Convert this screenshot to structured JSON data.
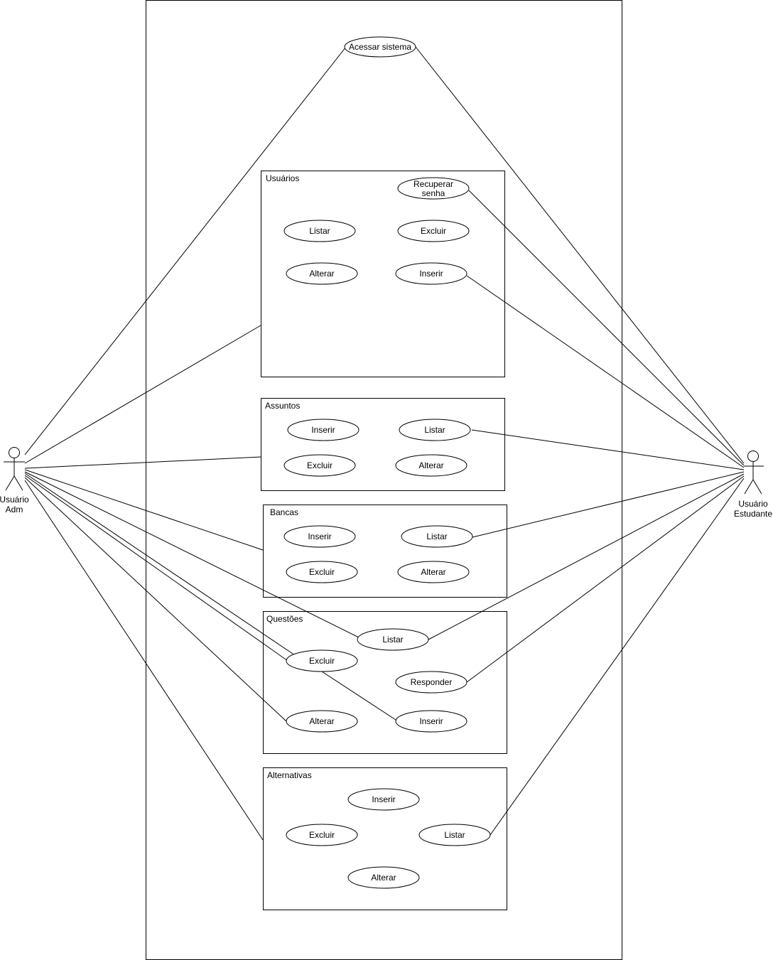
{
  "actors": {
    "admin": {
      "line1": "Usuário",
      "line2": "Adm"
    },
    "student": {
      "line1": "Usuário",
      "line2": "Estudante"
    }
  },
  "top_use_case": "Acessar sistema",
  "packages": {
    "usuarios": {
      "title": "Usuários",
      "recuperar_line1": "Recuperar",
      "recuperar_line2": "senha",
      "listar": "Listar",
      "excluir": "Excluir",
      "alterar": "Alterar",
      "inserir": "Inserir"
    },
    "assuntos": {
      "title": "Assuntos",
      "inserir": "Inserir",
      "listar": "Listar",
      "excluir": "Excluir",
      "alterar": "Alterar"
    },
    "bancas": {
      "title": "Bancas",
      "inserir": "Inserir",
      "listar": "Listar",
      "excluir": "Excluir",
      "alterar": "Alterar"
    },
    "questoes": {
      "title": "Questões",
      "listar": "Listar",
      "excluir": "Excluir",
      "responder": "Responder",
      "alterar": "Alterar",
      "inserir": "Inserir"
    },
    "alternativas": {
      "title": "Alternativas",
      "inserir": "Inserir",
      "excluir": "Excluir",
      "listar": "Listar",
      "alterar": "Alterar"
    }
  }
}
